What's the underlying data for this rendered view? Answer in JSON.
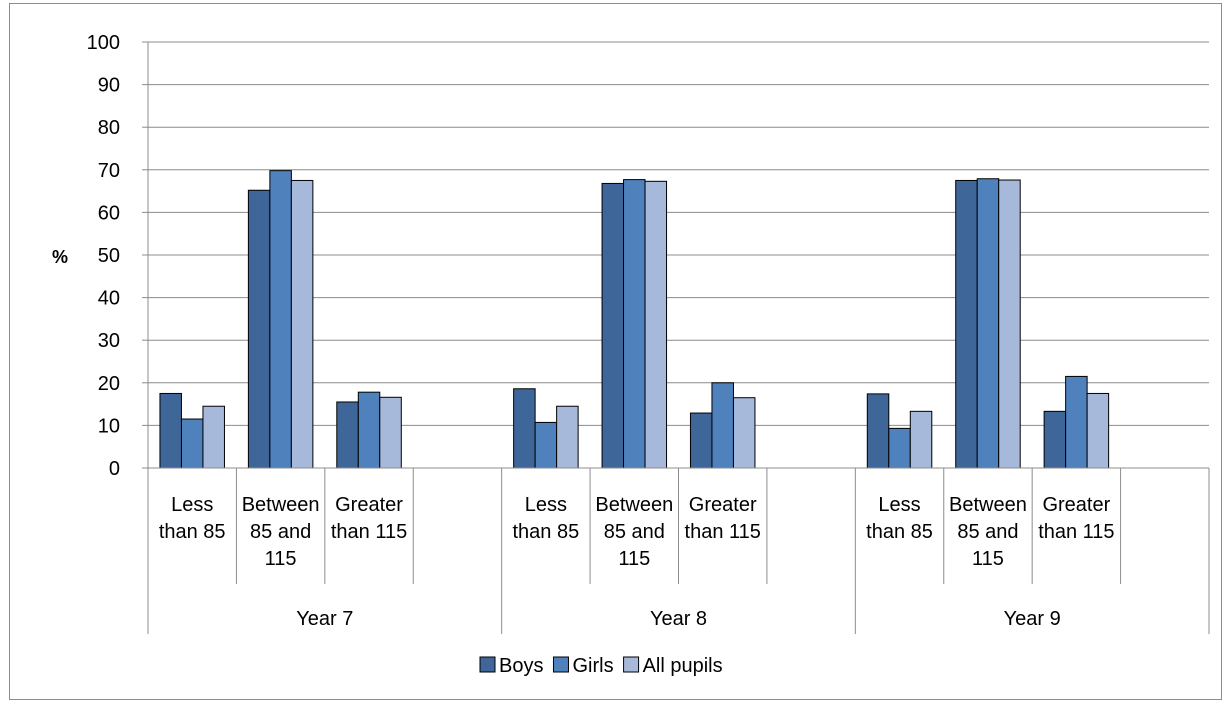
{
  "chart_data": {
    "type": "bar",
    "title": "",
    "xlabel": "",
    "ylabel": "%",
    "ylim": [
      0,
      100
    ],
    "yticks": [
      0,
      10,
      20,
      30,
      40,
      50,
      60,
      70,
      80,
      90,
      100
    ],
    "grid": true,
    "legend_position": "bottom",
    "groups": [
      {
        "label": "Year 7",
        "categories": [
          {
            "label_lines": [
              "Less",
              "than 85"
            ],
            "values": [
              17.5,
              11.5,
              14.5
            ]
          },
          {
            "label_lines": [
              "Between",
              "85 and",
              "115"
            ],
            "values": [
              65.2,
              69.8,
              67.5
            ]
          },
          {
            "label_lines": [
              "Greater",
              "than 115"
            ],
            "values": [
              15.5,
              17.8,
              16.6
            ]
          }
        ]
      },
      {
        "label": "Year 8",
        "categories": [
          {
            "label_lines": [
              "Less",
              "than 85"
            ],
            "values": [
              18.6,
              10.7,
              14.5
            ]
          },
          {
            "label_lines": [
              "Between",
              "85 and",
              "115"
            ],
            "values": [
              66.8,
              67.7,
              67.3
            ]
          },
          {
            "label_lines": [
              "Greater",
              "than 115"
            ],
            "values": [
              12.9,
              20.0,
              16.5
            ]
          }
        ]
      },
      {
        "label": "Year 9",
        "categories": [
          {
            "label_lines": [
              "Less",
              "than 85"
            ],
            "values": [
              17.4,
              9.3,
              13.3
            ]
          },
          {
            "label_lines": [
              "Between",
              "85 and",
              "115"
            ],
            "values": [
              67.5,
              67.9,
              67.6
            ]
          },
          {
            "label_lines": [
              "Greater",
              "than 115"
            ],
            "values": [
              13.3,
              21.5,
              17.5
            ]
          }
        ]
      }
    ],
    "series": [
      {
        "name": "Boys",
        "color": "#3f6699"
      },
      {
        "name": "Girls",
        "color": "#4f81bd"
      },
      {
        "name": "All pupils",
        "color": "#a7b9da"
      }
    ]
  }
}
